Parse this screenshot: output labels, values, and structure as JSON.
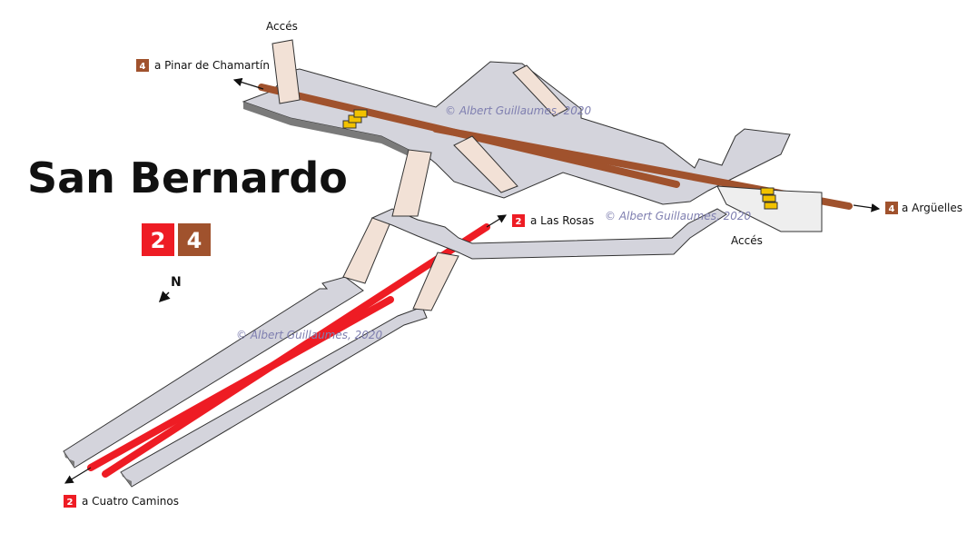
{
  "station": {
    "name": "San Bernardo",
    "lines": [
      {
        "number": "2",
        "color": "#ee1c24"
      },
      {
        "number": "4",
        "color": "#a0522d"
      }
    ]
  },
  "north_label": "N",
  "watermark": "© Albert Guillaumes, 2020",
  "access_label": "Accés",
  "directions": [
    {
      "line": "4",
      "label": "a Pinar de Chamartín"
    },
    {
      "line": "4",
      "label": "a Argüelles"
    },
    {
      "line": "2",
      "label": "a Las Rosas"
    },
    {
      "line": "2",
      "label": "a Cuatro Caminos"
    }
  ],
  "colors": {
    "line2": "#ee1c24",
    "line4": "#a0522d",
    "platform_top": "#d4d4dc",
    "platform_side": "#7a7a7a",
    "corridor": "#f2e1d6",
    "stair": "#f2c200"
  }
}
